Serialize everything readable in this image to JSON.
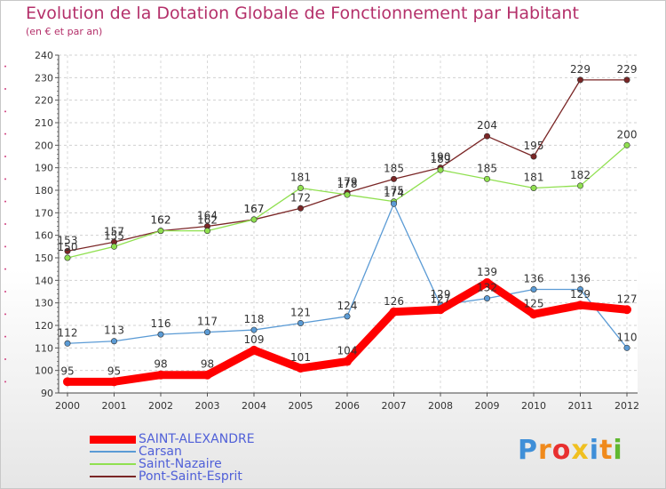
{
  "chart_data": {
    "type": "line",
    "title": "Evolution de la Dotation Globale de Fonctionnement par Habitant",
    "subtitle": "(en € et par an)",
    "xlabel": "",
    "ylabel": "",
    "x": [
      "2000",
      "2001",
      "2002",
      "2003",
      "2004",
      "2005",
      "2006",
      "2007",
      "2008",
      "2009",
      "2010",
      "2011",
      "2012"
    ],
    "ylim": [
      90,
      240
    ],
    "yticks": [
      90,
      100,
      110,
      120,
      130,
      140,
      150,
      160,
      170,
      180,
      190,
      200,
      210,
      220,
      230,
      240
    ],
    "grid": "horizontal dashed",
    "legend_position": "bottom-left",
    "series": [
      {
        "name": "SAINT-ALEXANDRE",
        "color": "#ff0000",
        "values": [
          95,
          95,
          98,
          98,
          109,
          101,
          104,
          126,
          127,
          139,
          125,
          129,
          127
        ]
      },
      {
        "name": "Carsan",
        "color": "#5b9bd5",
        "values": [
          112,
          113,
          116,
          117,
          118,
          121,
          124,
          174,
          129,
          132,
          136,
          136,
          110
        ]
      },
      {
        "name": "Saint-Nazaire",
        "color": "#90e050",
        "values": [
          150,
          155,
          162,
          162,
          167,
          181,
          178,
          175,
          189,
          185,
          181,
          182,
          200
        ]
      },
      {
        "name": "Pont-Saint-Esprit",
        "color": "#7a2626",
        "values": [
          153,
          157,
          162,
          164,
          167,
          172,
          179,
          185,
          190,
          204,
          195,
          229,
          229
        ]
      }
    ]
  },
  "logo": {
    "letters": [
      "P",
      "r",
      "o",
      "x",
      "i",
      "t",
      "i"
    ],
    "colors": [
      "#3f8fd8",
      "#f08a1c",
      "#e83030",
      "#f0c020",
      "#3f8fd8",
      "#f08a1c",
      "#60b830"
    ]
  }
}
